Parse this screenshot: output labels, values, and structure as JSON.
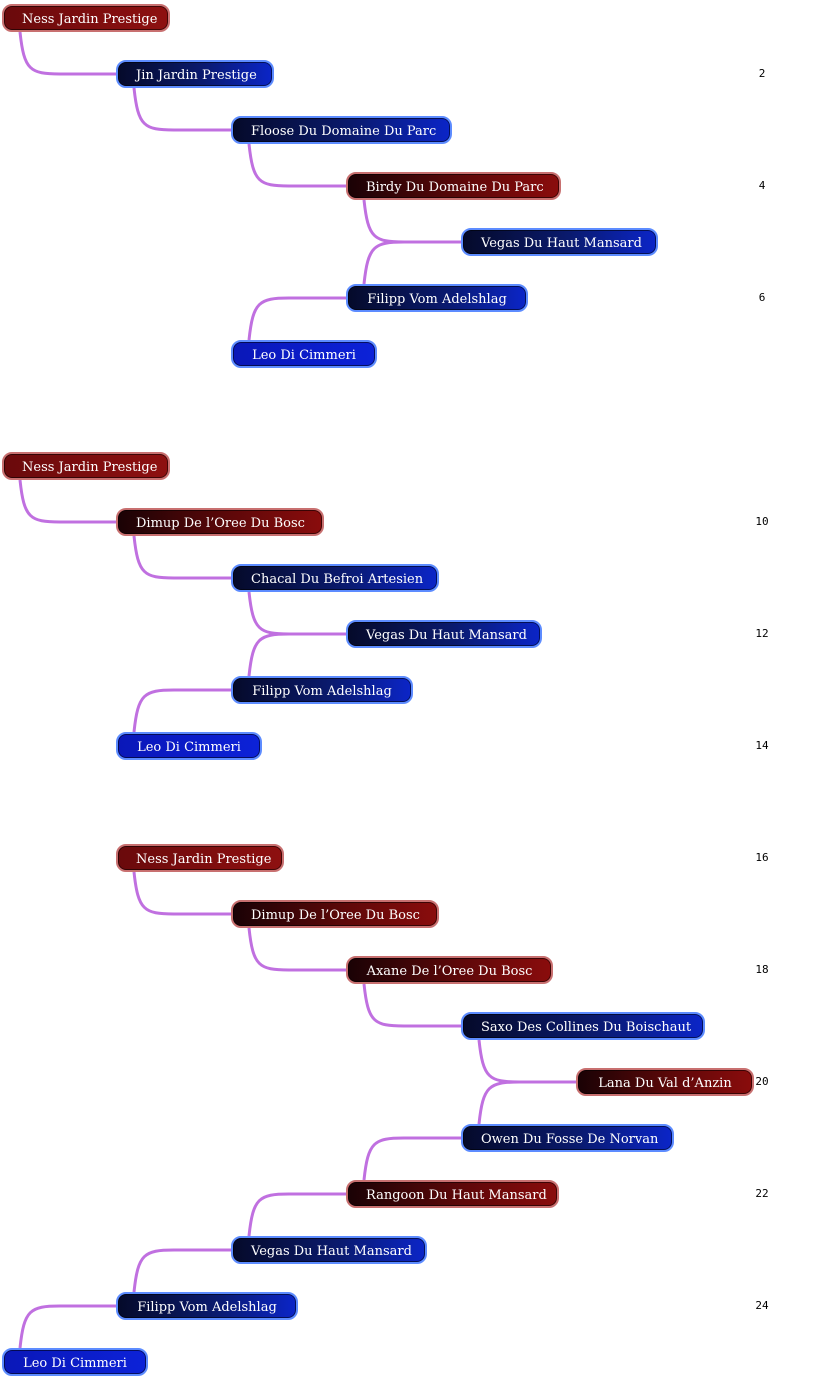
{
  "chains": [
    {
      "nodes": [
        {
          "label": "Ness Jardin Prestige",
          "sex": "female"
        },
        {
          "label": "Jin Jardin Prestige",
          "sex": "male"
        },
        {
          "label": "Floose Du Domaine Du Parc",
          "sex": "male"
        },
        {
          "label": "Birdy Du Domaine Du Parc",
          "sex": "female"
        },
        {
          "label": "Vegas Du Haut Mansard",
          "sex": "male"
        },
        {
          "label": "Filipp Vom Adelshlag",
          "sex": "male"
        },
        {
          "label": "Leo Di Cimmeri",
          "sex": "male"
        }
      ]
    },
    {
      "nodes": [
        {
          "label": "Ness Jardin Prestige",
          "sex": "female"
        },
        {
          "label": "Dimup De l’Oree Du Bosc",
          "sex": "female"
        },
        {
          "label": "Chacal Du Befroi Artesien",
          "sex": "male"
        },
        {
          "label": "Vegas Du Haut Mansard",
          "sex": "male"
        },
        {
          "label": "Filipp Vom Adelshlag",
          "sex": "male"
        },
        {
          "label": "Leo Di Cimmeri",
          "sex": "male"
        }
      ]
    },
    {
      "nodes": [
        {
          "label": "Ness Jardin Prestige",
          "sex": "female"
        },
        {
          "label": "Dimup De l’Oree Du Bosc",
          "sex": "female"
        },
        {
          "label": "Axane De l’Oree Du Bosc",
          "sex": "female"
        },
        {
          "label": "Saxo Des Collines Du Boischaut",
          "sex": "male"
        },
        {
          "label": "Lana Du Val d’Anzin",
          "sex": "female"
        },
        {
          "label": "Owen Du Fosse De Norvan",
          "sex": "male"
        },
        {
          "label": "Rangoon Du Haut Mansard",
          "sex": "female"
        },
        {
          "label": "Vegas Du Haut Mansard",
          "sex": "male"
        },
        {
          "label": "Filipp Vom Adelshlag",
          "sex": "male"
        },
        {
          "label": "Leo Di Cimmeri",
          "sex": "male"
        }
      ]
    }
  ],
  "generation_labels": [
    "2",
    "4",
    "6",
    "10",
    "12",
    "14",
    "16",
    "18",
    "20",
    "22",
    "24"
  ],
  "colors": {
    "link": "#c070e0",
    "male_border": "#5d8cff",
    "female_border": "#c87070"
  }
}
